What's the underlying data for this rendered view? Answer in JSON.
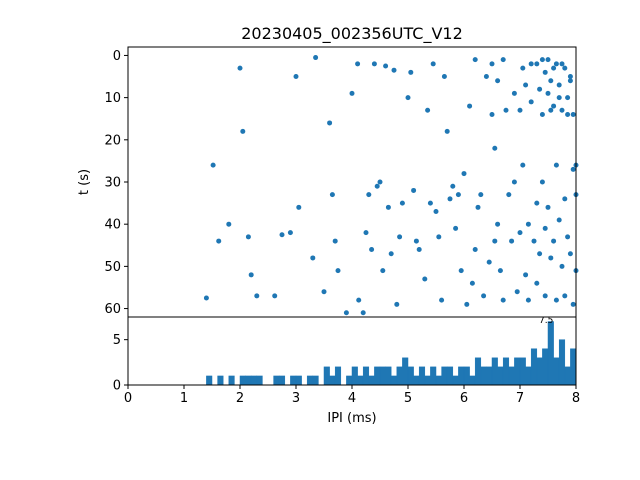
{
  "figure": {
    "title": "20230405_002356UTC_V12"
  },
  "chart_data": [
    {
      "type": "scatter",
      "title": "20230405_002356UTC_V12",
      "xlabel": "",
      "ylabel": "t (s)",
      "xlim": [
        0,
        8
      ],
      "ylim": [
        -2,
        62
      ],
      "y_inverted": true,
      "yticks": [
        0,
        10,
        20,
        30,
        40,
        50,
        60
      ],
      "marker_color": "#1f77b4",
      "points": [
        [
          1.4,
          57.5
        ],
        [
          1.52,
          26
        ],
        [
          1.62,
          44
        ],
        [
          1.8,
          40
        ],
        [
          2.0,
          3
        ],
        [
          2.05,
          18
        ],
        [
          2.15,
          43
        ],
        [
          2.2,
          52
        ],
        [
          2.3,
          57
        ],
        [
          2.62,
          57
        ],
        [
          2.75,
          42.5
        ],
        [
          2.9,
          42
        ],
        [
          3.0,
          5
        ],
        [
          3.05,
          36
        ],
        [
          3.3,
          48
        ],
        [
          3.35,
          0.5
        ],
        [
          3.5,
          56
        ],
        [
          3.6,
          16
        ],
        [
          3.65,
          33
        ],
        [
          3.7,
          44
        ],
        [
          3.75,
          51
        ],
        [
          3.9,
          61
        ],
        [
          4.0,
          9
        ],
        [
          4.1,
          2
        ],
        [
          4.12,
          58
        ],
        [
          4.2,
          61
        ],
        [
          4.25,
          42
        ],
        [
          4.3,
          33
        ],
        [
          4.35,
          46
        ],
        [
          4.4,
          2
        ],
        [
          4.45,
          31
        ],
        [
          4.5,
          30
        ],
        [
          4.55,
          51
        ],
        [
          4.6,
          2.5
        ],
        [
          4.65,
          36
        ],
        [
          4.7,
          47
        ],
        [
          4.75,
          3.5
        ],
        [
          4.8,
          59
        ],
        [
          4.85,
          43
        ],
        [
          4.9,
          35
        ],
        [
          5.0,
          10
        ],
        [
          5.05,
          4
        ],
        [
          5.1,
          32
        ],
        [
          5.15,
          44
        ],
        [
          5.2,
          46
        ],
        [
          5.3,
          53
        ],
        [
          5.35,
          13
        ],
        [
          5.4,
          35
        ],
        [
          5.45,
          2
        ],
        [
          5.5,
          37
        ],
        [
          5.55,
          43
        ],
        [
          5.6,
          58
        ],
        [
          5.65,
          5
        ],
        [
          5.7,
          18
        ],
        [
          5.75,
          34
        ],
        [
          5.8,
          31
        ],
        [
          5.85,
          41
        ],
        [
          5.9,
          33
        ],
        [
          5.95,
          51
        ],
        [
          6.0,
          28
        ],
        [
          6.05,
          59
        ],
        [
          6.1,
          12
        ],
        [
          6.15,
          54
        ],
        [
          6.2,
          1
        ],
        [
          6.2,
          46
        ],
        [
          6.25,
          36
        ],
        [
          6.3,
          33
        ],
        [
          6.35,
          57
        ],
        [
          6.4,
          5
        ],
        [
          6.45,
          49
        ],
        [
          6.5,
          2
        ],
        [
          6.5,
          14
        ],
        [
          6.55,
          22
        ],
        [
          6.55,
          44
        ],
        [
          6.6,
          6
        ],
        [
          6.6,
          40
        ],
        [
          6.65,
          51
        ],
        [
          6.7,
          1
        ],
        [
          6.7,
          58
        ],
        [
          6.75,
          13
        ],
        [
          6.8,
          33
        ],
        [
          6.85,
          44
        ],
        [
          6.9,
          9
        ],
        [
          6.9,
          30
        ],
        [
          6.95,
          56
        ],
        [
          7.0,
          13
        ],
        [
          7.0,
          42
        ],
        [
          7.05,
          3
        ],
        [
          7.05,
          26
        ],
        [
          7.1,
          7
        ],
        [
          7.1,
          52
        ],
        [
          7.15,
          40
        ],
        [
          7.15,
          58
        ],
        [
          7.2,
          2
        ],
        [
          7.2,
          11
        ],
        [
          7.25,
          44
        ],
        [
          7.3,
          2
        ],
        [
          7.3,
          35
        ],
        [
          7.3,
          54
        ],
        [
          7.35,
          8
        ],
        [
          7.35,
          47
        ],
        [
          7.4,
          1
        ],
        [
          7.4,
          14
        ],
        [
          7.4,
          30
        ],
        [
          7.45,
          4
        ],
        [
          7.45,
          41
        ],
        [
          7.45,
          57
        ],
        [
          7.5,
          1
        ],
        [
          7.5,
          9
        ],
        [
          7.5,
          36
        ],
        [
          7.55,
          6
        ],
        [
          7.55,
          13
        ],
        [
          7.55,
          48
        ],
        [
          7.6,
          3
        ],
        [
          7.6,
          12
        ],
        [
          7.6,
          44
        ],
        [
          7.65,
          2
        ],
        [
          7.65,
          26
        ],
        [
          7.65,
          58
        ],
        [
          7.7,
          7
        ],
        [
          7.7,
          10
        ],
        [
          7.7,
          39
        ],
        [
          7.75,
          2
        ],
        [
          7.75,
          13
        ],
        [
          7.75,
          50
        ],
        [
          7.8,
          3
        ],
        [
          7.8,
          34
        ],
        [
          7.8,
          57
        ],
        [
          7.85,
          10
        ],
        [
          7.85,
          14
        ],
        [
          7.85,
          43
        ],
        [
          7.9,
          5
        ],
        [
          7.9,
          6
        ],
        [
          7.9,
          47
        ],
        [
          7.95,
          14
        ],
        [
          7.95,
          27
        ],
        [
          7.95,
          59
        ],
        [
          8.0,
          26
        ],
        [
          8.0,
          33
        ],
        [
          8.0,
          51
        ]
      ]
    },
    {
      "type": "bar",
      "xlabel": "IPI (ms)",
      "ylabel": "",
      "xlim": [
        0,
        8
      ],
      "ylim": [
        0,
        7.5
      ],
      "xticks": [
        0,
        1,
        2,
        3,
        4,
        5,
        6,
        7,
        8
      ],
      "yticks": [
        0,
        5
      ],
      "bar_color": "#1f77b4",
      "bin_start": 0,
      "bin_width": 0.1,
      "counts": [
        0,
        0,
        0,
        0,
        0,
        0,
        0,
        0,
        0,
        0,
        0,
        0,
        0,
        0,
        1,
        0,
        1,
        0,
        1,
        0,
        1,
        1,
        1,
        1,
        0,
        0,
        1,
        1,
        0,
        1,
        1,
        0,
        1,
        1,
        0,
        2,
        1,
        2,
        0,
        1,
        2,
        1,
        2,
        1,
        2,
        2,
        2,
        1,
        2,
        3,
        2,
        1,
        2,
        1,
        2,
        1,
        2,
        2,
        1,
        2,
        2,
        1,
        3,
        2,
        2,
        3,
        2,
        3,
        2,
        3,
        3,
        2,
        4,
        3,
        4,
        7,
        3,
        5,
        2,
        4
      ],
      "annotation": {
        "text": "7.5",
        "x": 7.34,
        "y": 6.85
      }
    }
  ]
}
